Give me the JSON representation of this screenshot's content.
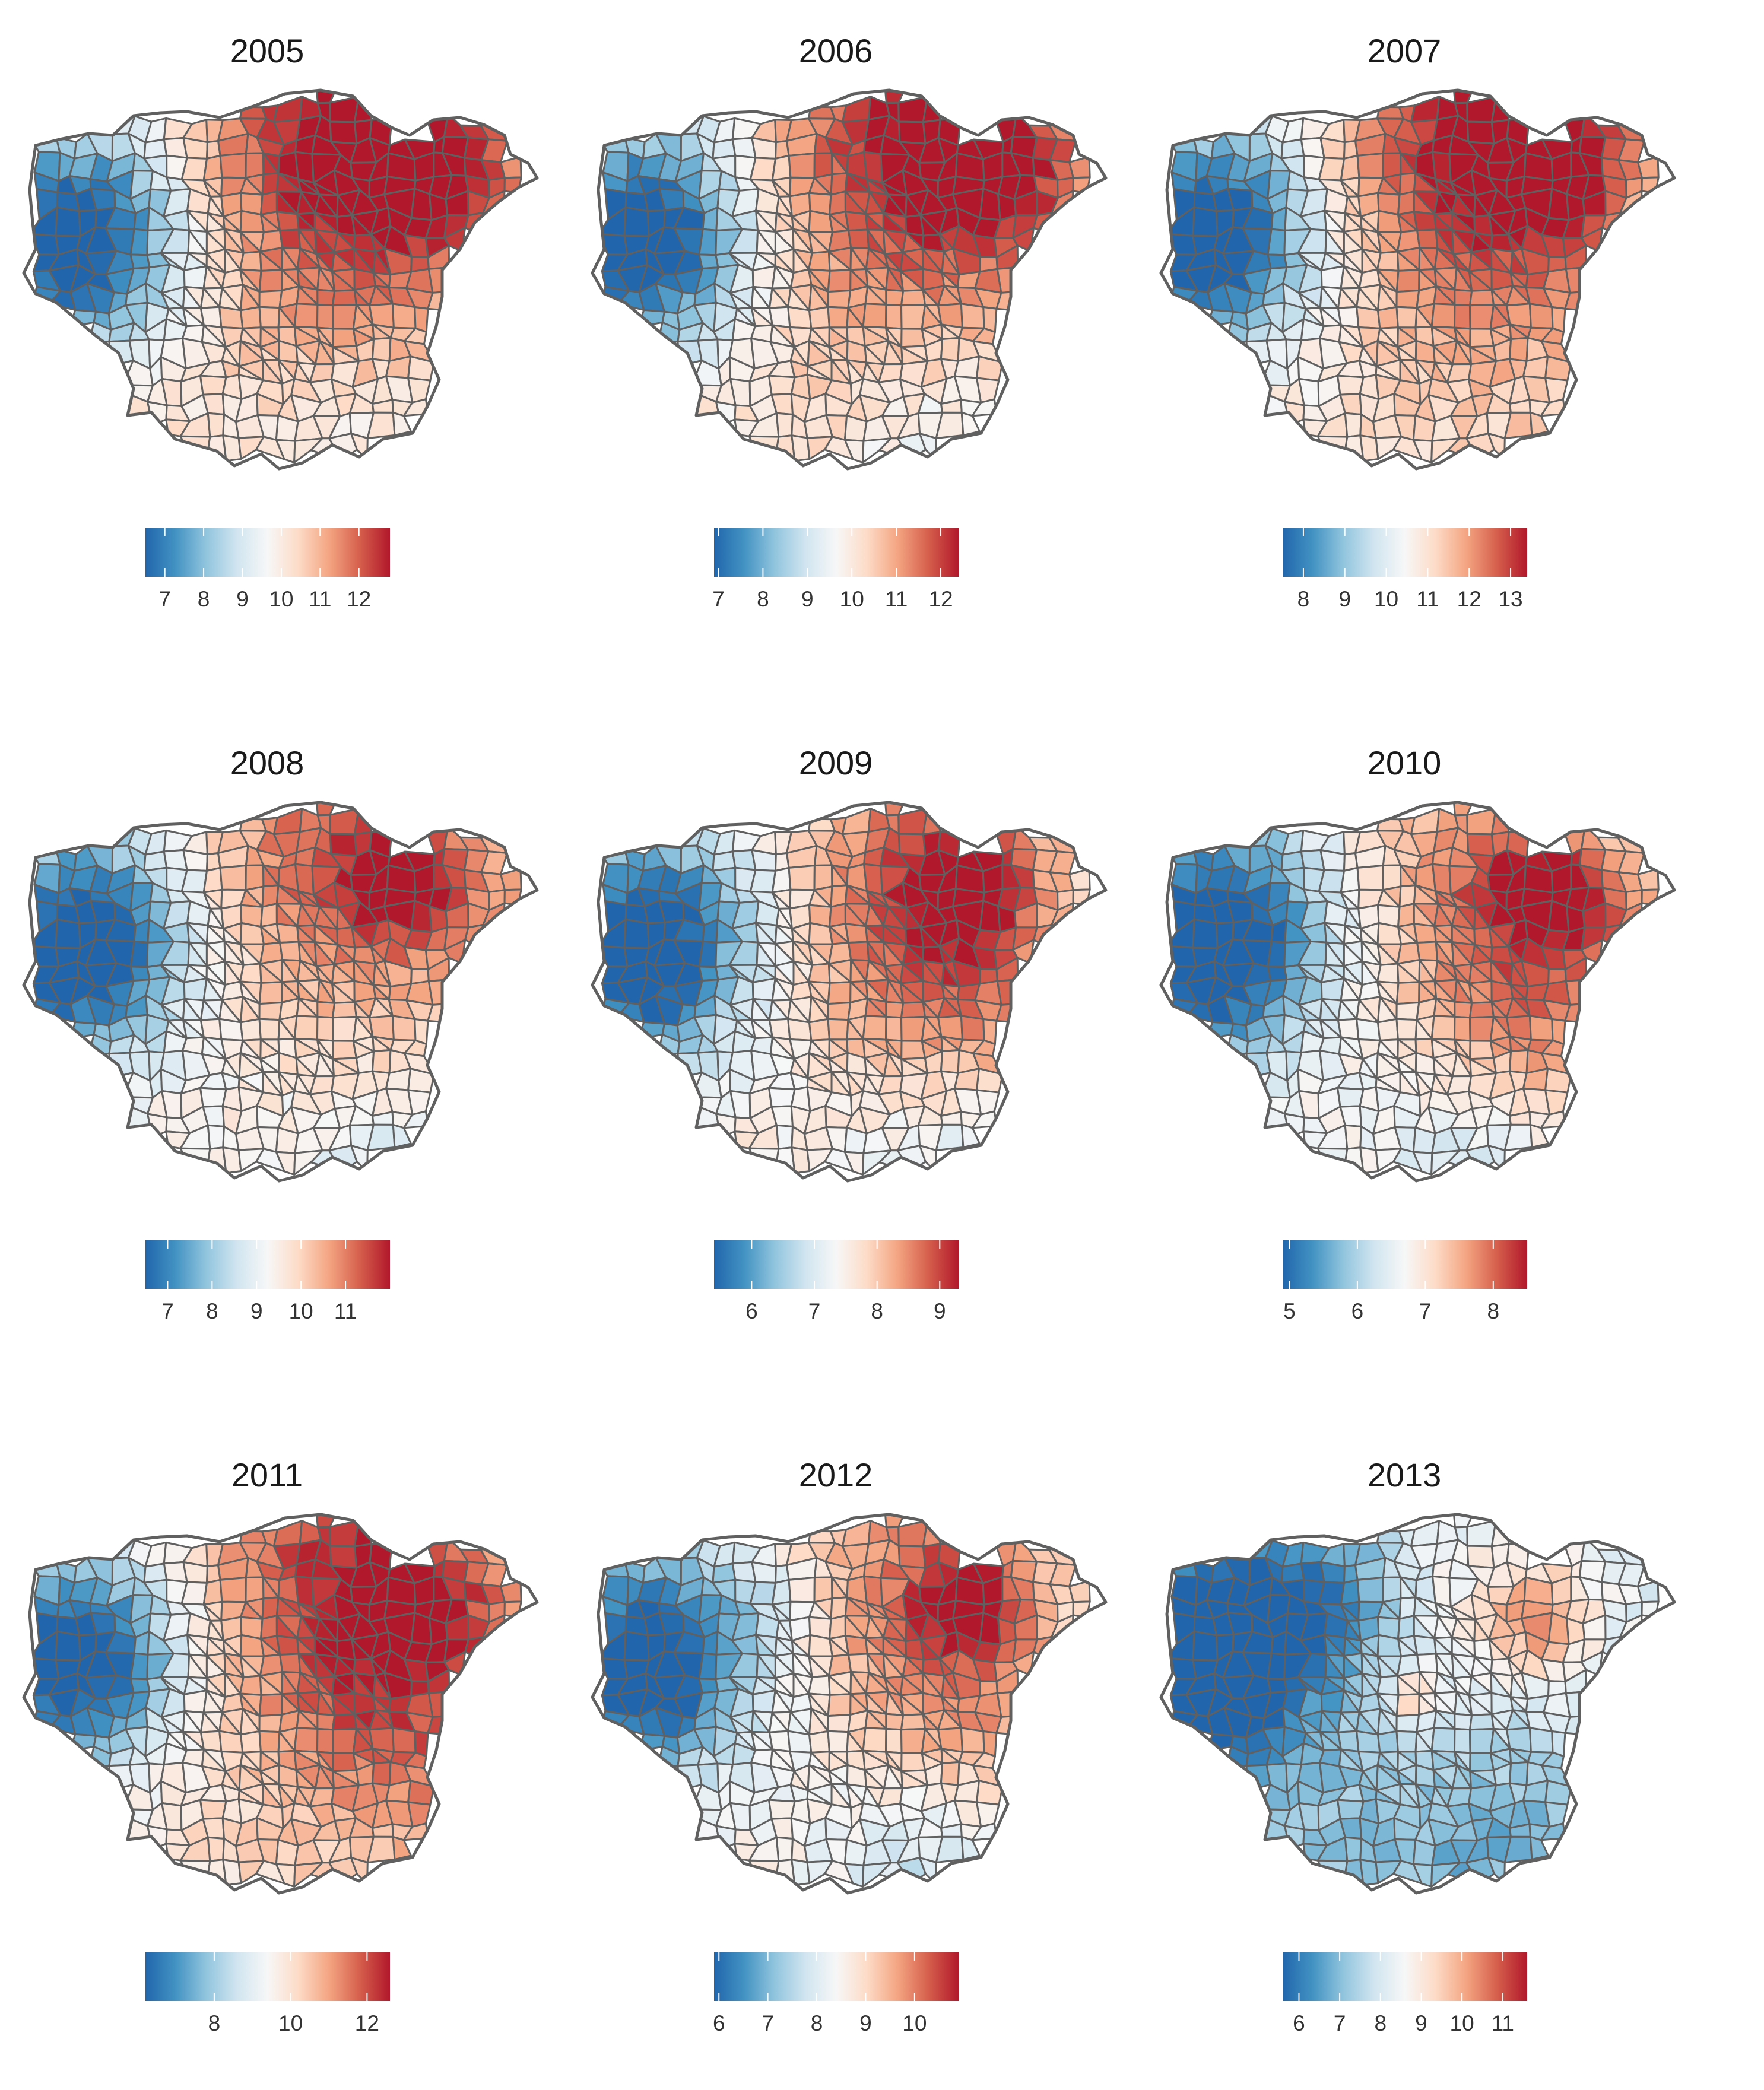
{
  "chart_data": [
    {
      "type": "choropleth",
      "title": "2005",
      "colorbar": {
        "min": 6.5,
        "max": 12.8,
        "ticks": [
          7,
          8,
          9,
          10,
          11,
          12
        ],
        "tick_labels": [
          "7",
          "8",
          "9",
          "10",
          "11",
          "12"
        ]
      }
    },
    {
      "type": "choropleth",
      "title": "2006",
      "colorbar": {
        "min": 6.9,
        "max": 12.4,
        "ticks": [
          7,
          8,
          9,
          10,
          11,
          12
        ],
        "tick_labels": [
          "7",
          "8",
          "9",
          "10",
          "11",
          "12"
        ]
      }
    },
    {
      "type": "choropleth",
      "title": "2007",
      "colorbar": {
        "min": 7.5,
        "max": 13.4,
        "ticks": [
          8,
          9,
          10,
          11,
          12,
          13
        ],
        "tick_labels": [
          "8",
          "9",
          "10",
          "11",
          "12",
          "13"
        ]
      }
    },
    {
      "type": "choropleth",
      "title": "2008",
      "colorbar": {
        "min": 6.5,
        "max": 12.0,
        "ticks": [
          7,
          8,
          9,
          10,
          11
        ],
        "tick_labels": [
          "7",
          "8",
          "9",
          "10",
          "11"
        ]
      }
    },
    {
      "type": "choropleth",
      "title": "2009",
      "colorbar": {
        "min": 5.4,
        "max": 9.3,
        "ticks": [
          6,
          7,
          8,
          9
        ],
        "tick_labels": [
          "6",
          "7",
          "8",
          "9"
        ]
      }
    },
    {
      "type": "choropleth",
      "title": "2010",
      "colorbar": {
        "min": 4.9,
        "max": 8.5,
        "ticks": [
          5,
          6,
          7,
          8
        ],
        "tick_labels": [
          "5",
          "6",
          "7",
          "8"
        ]
      }
    },
    {
      "type": "choropleth",
      "title": "2011",
      "colorbar": {
        "min": 6.2,
        "max": 12.6,
        "ticks": [
          8,
          10,
          12
        ],
        "tick_labels": [
          "8",
          "10",
          "12"
        ]
      }
    },
    {
      "type": "choropleth",
      "title": "2012",
      "colorbar": {
        "min": 5.9,
        "max": 10.9,
        "ticks": [
          6,
          7,
          8,
          9,
          10
        ],
        "tick_labels": [
          "6",
          "7",
          "8",
          "9",
          "10"
        ]
      }
    },
    {
      "type": "choropleth",
      "title": "2013",
      "colorbar": {
        "min": 5.6,
        "max": 11.6,
        "ticks": [
          6,
          7,
          8,
          9,
          10,
          11
        ],
        "tick_labels": [
          "6",
          "7",
          "8",
          "9",
          "10",
          "11"
        ]
      }
    }
  ],
  "colors": {
    "scale": [
      "#2166ac",
      "#4393c3",
      "#92c5de",
      "#d1e5f0",
      "#f7f7f7",
      "#fddbc7",
      "#f4a582",
      "#d6604d",
      "#b2182b"
    ],
    "boundary": "#606060",
    "title_text": "#1a1a1a",
    "tick_text": "#333333"
  }
}
